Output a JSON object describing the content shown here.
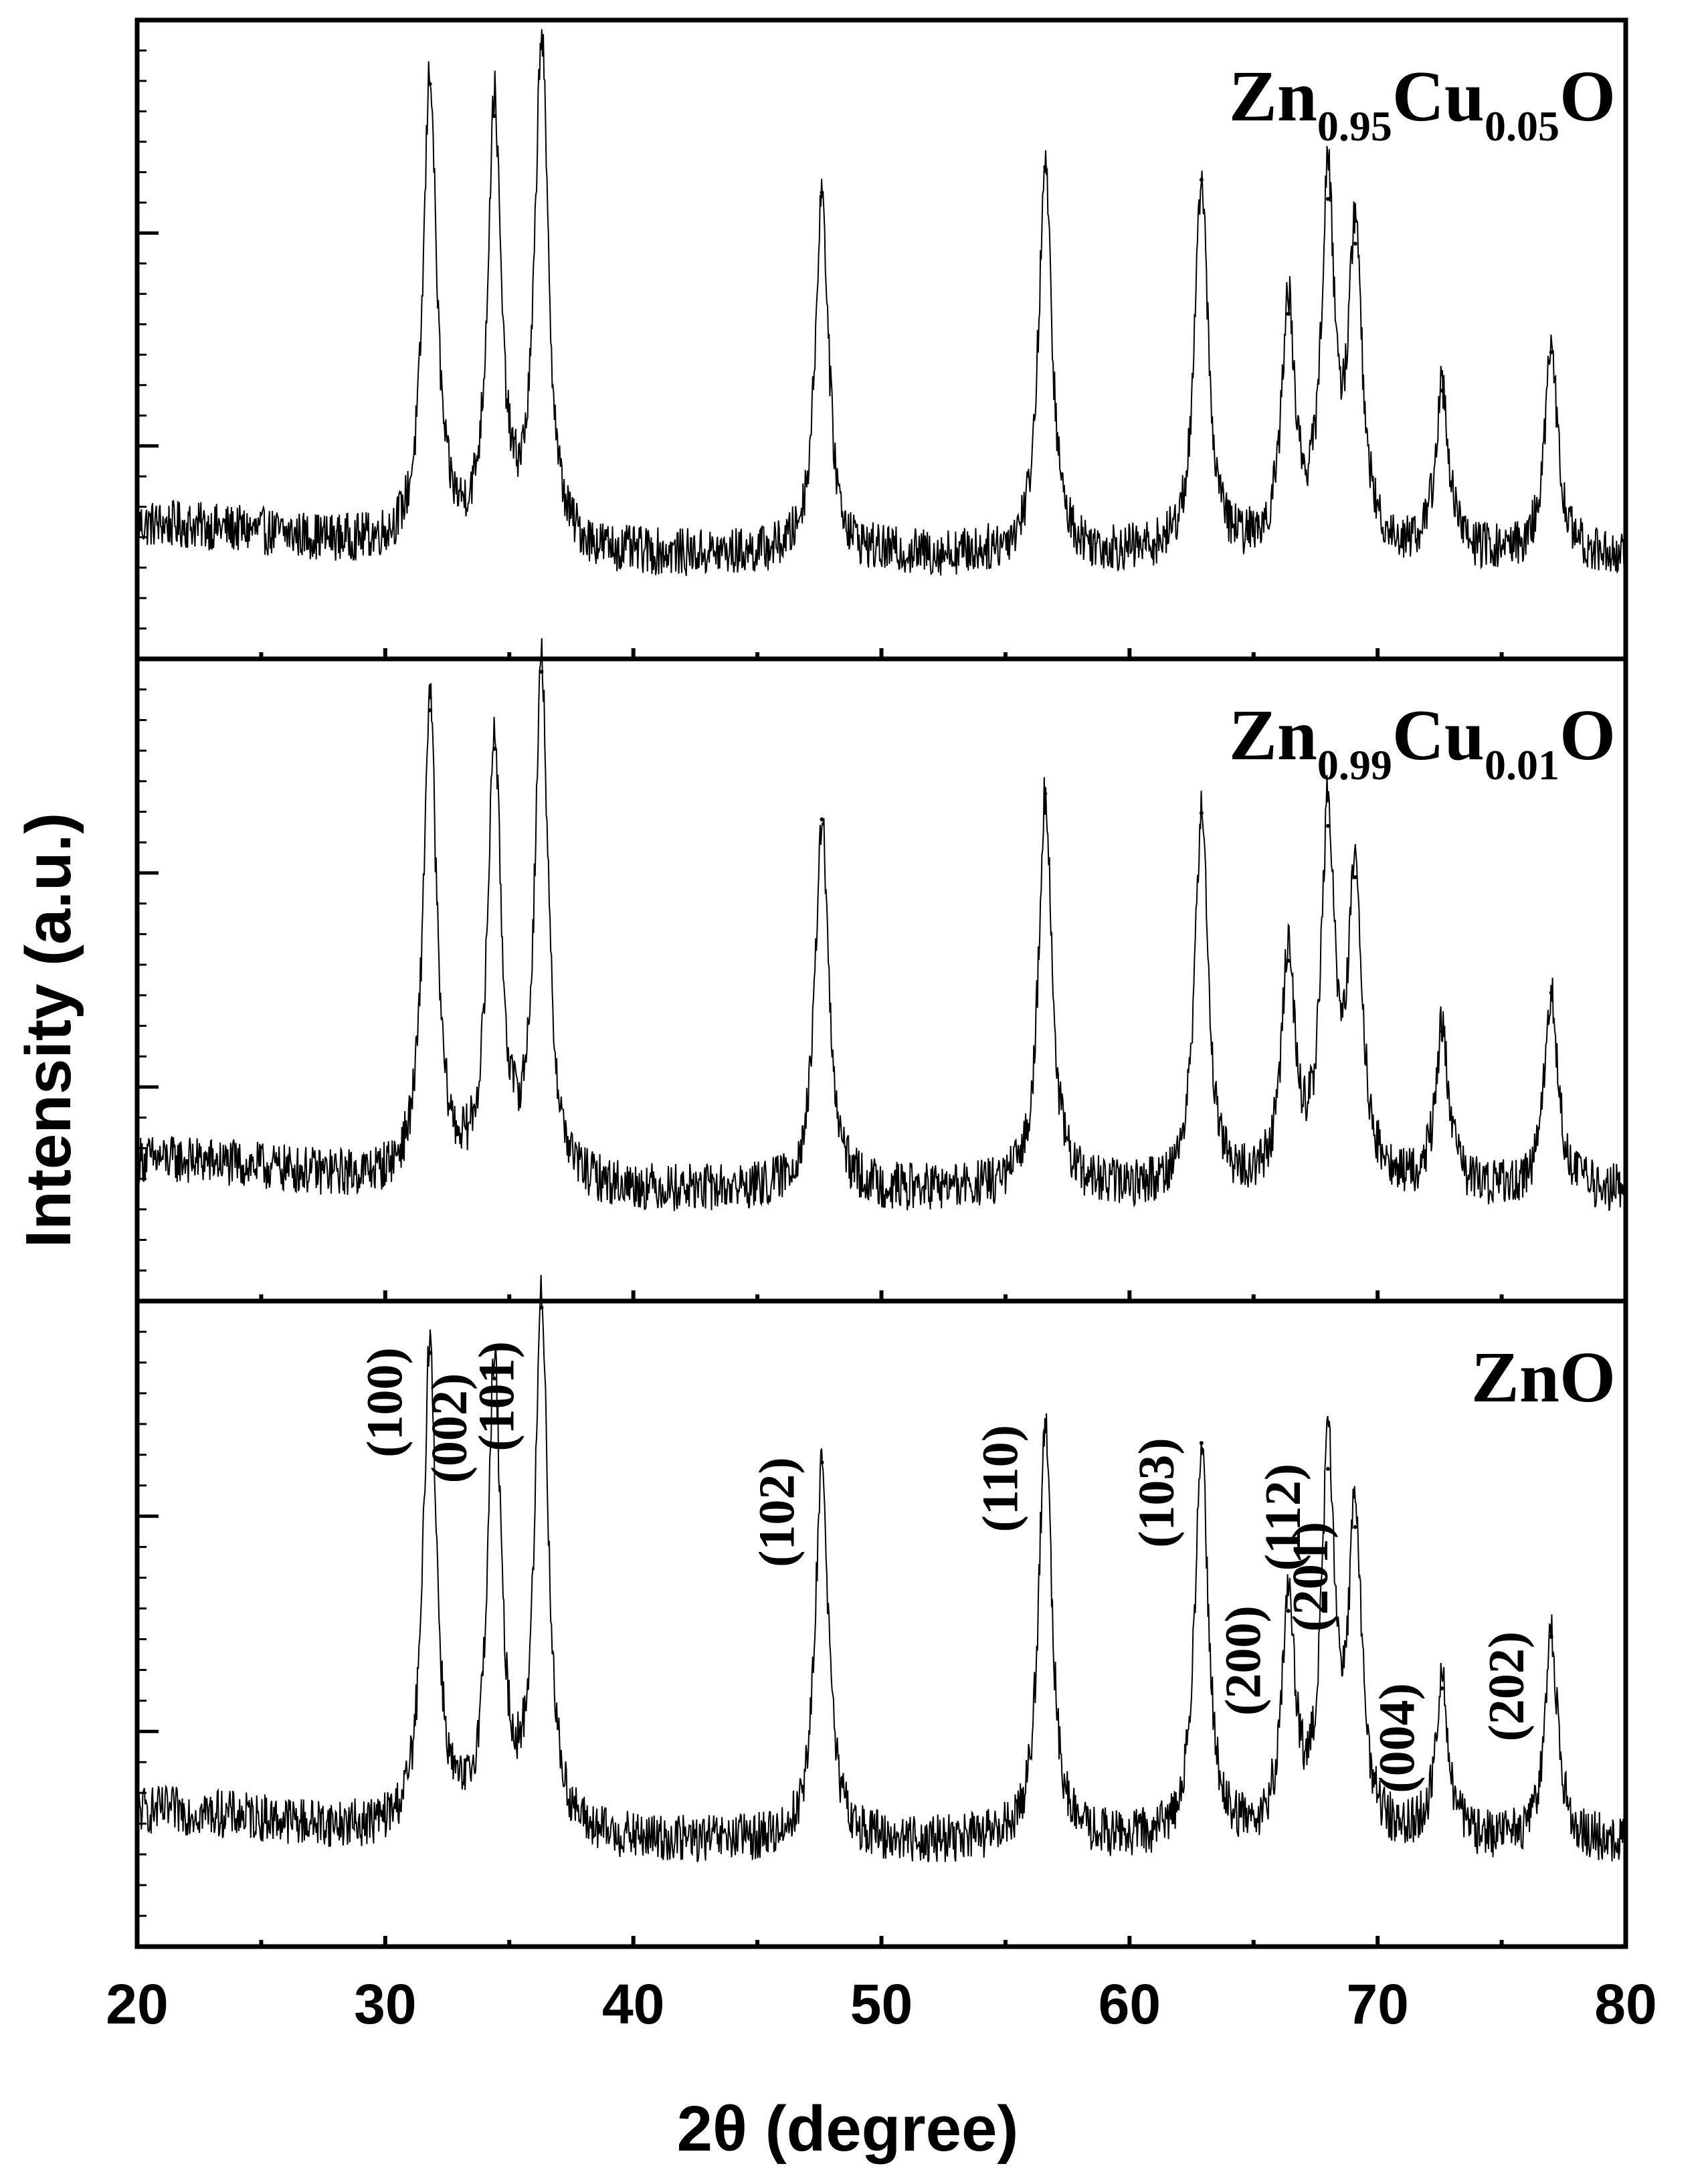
{
  "chart_data": {
    "type": "line",
    "xlabel": "2θ (degree)",
    "ylabel": "Intensity (a.u.)",
    "xlim": [
      20,
      80
    ],
    "x_ticks": [
      "20",
      "30",
      "40",
      "50",
      "60",
      "70",
      "80"
    ],
    "layout": "three vertically stacked panels sharing the x axis",
    "colors": {
      "line": "#000000",
      "axes": "#000000",
      "background": "#ffffff"
    },
    "panels": [
      {
        "label_parts": [
          "Zn",
          "0.95",
          "Cu",
          "0.05",
          "O"
        ],
        "ylim": [
          0,
          1
        ],
        "baseline": 0.16,
        "peaks": [
          {
            "x": 31.8,
            "y": 0.9
          },
          {
            "x": 34.4,
            "y": 0.85
          },
          {
            "x": 36.3,
            "y": 0.96
          },
          {
            "x": 47.6,
            "y": 0.73
          },
          {
            "x": 56.6,
            "y": 0.77
          },
          {
            "x": 62.9,
            "y": 0.75
          },
          {
            "x": 66.4,
            "y": 0.54
          },
          {
            "x": 68.0,
            "y": 0.72
          },
          {
            "x": 69.1,
            "y": 0.65
          },
          {
            "x": 72.6,
            "y": 0.42
          },
          {
            "x": 77.0,
            "y": 0.48
          }
        ]
      },
      {
        "label_parts": [
          "Zn",
          "0.99",
          "Cu",
          "0.01",
          "O"
        ],
        "ylim": [
          0,
          1
        ],
        "baseline": 0.17,
        "peaks": [
          {
            "x": 31.8,
            "y": 0.92
          },
          {
            "x": 34.4,
            "y": 0.86
          },
          {
            "x": 36.3,
            "y": 0.98
          },
          {
            "x": 47.6,
            "y": 0.75
          },
          {
            "x": 56.6,
            "y": 0.79
          },
          {
            "x": 62.9,
            "y": 0.76
          },
          {
            "x": 66.4,
            "y": 0.53
          },
          {
            "x": 68.0,
            "y": 0.74
          },
          {
            "x": 69.1,
            "y": 0.66
          },
          {
            "x": 72.6,
            "y": 0.42
          },
          {
            "x": 77.0,
            "y": 0.48
          }
        ]
      },
      {
        "label_parts": [
          "ZnO"
        ],
        "ylim": [
          0,
          1
        ],
        "baseline": 0.16,
        "peaks": [
          {
            "x": 31.8,
            "y": 0.92
          },
          {
            "x": 34.4,
            "y": 0.88
          },
          {
            "x": 36.3,
            "y": 0.99
          },
          {
            "x": 47.6,
            "y": 0.75
          },
          {
            "x": 56.6,
            "y": 0.8
          },
          {
            "x": 62.9,
            "y": 0.78
          },
          {
            "x": 66.4,
            "y": 0.52
          },
          {
            "x": 68.0,
            "y": 0.74
          },
          {
            "x": 69.1,
            "y": 0.65
          },
          {
            "x": 72.6,
            "y": 0.4
          },
          {
            "x": 77.0,
            "y": 0.48
          }
        ],
        "annotations": [
          {
            "text": "(100)",
            "x": 31.8
          },
          {
            "text": "(002)",
            "x": 34.4
          },
          {
            "text": "(101)",
            "x": 36.3
          },
          {
            "text": "(102)",
            "x": 47.6
          },
          {
            "text": "(110)",
            "x": 56.6
          },
          {
            "text": "(103)",
            "x": 62.9
          },
          {
            "text": "(200)",
            "x": 66.4
          },
          {
            "text": "(112)",
            "x": 68.0
          },
          {
            "text": "(201)",
            "x": 69.1
          },
          {
            "text": "(004)",
            "x": 72.6
          },
          {
            "text": "(202)",
            "x": 77.0
          }
        ]
      }
    ]
  }
}
